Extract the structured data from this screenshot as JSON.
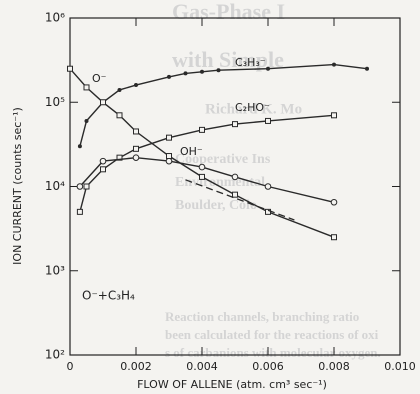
{
  "background_text": [
    "Gas-Phase I",
    "with Simple",
    "Richard K. Mo",
    "Cooperative Ins",
    "Environmental",
    "Boulder, Colo",
    "Reaction channels, branching ratio",
    "been calculated for the reactions of oxi",
    "s of carbanions with molecular oxygen."
  ],
  "chart_data": {
    "type": "line",
    "x_label": "FLOW OF ALLENE (atm. cm³ sec⁻¹)",
    "y_label": "ION CURRENT (counts sec⁻¹)",
    "annotation": "O⁻+C₃H₄",
    "log_y": true,
    "xlim": [
      0,
      0.01
    ],
    "ylim": [
      100,
      1000000
    ],
    "xticks": [
      0,
      0.002,
      0.004,
      0.006,
      0.008,
      {
        "value": 0.01,
        "label": "0.010"
      }
    ],
    "yticks": [
      {
        "value": 100,
        "label": "10²"
      },
      {
        "value": 1000,
        "label": "10³"
      },
      {
        "value": 10000,
        "label": "10⁴"
      },
      {
        "value": 100000,
        "label": "10⁵"
      },
      {
        "value": 1000000,
        "label": "10⁶"
      }
    ],
    "color": "#2a2a2a",
    "series": [
      {
        "name": "C₃H₃⁻",
        "marker": "dot",
        "x": [
          0.0003,
          0.0005,
          0.001,
          0.0015,
          0.002,
          0.003,
          0.0035,
          0.004,
          0.0045,
          0.006,
          0.008,
          0.009
        ],
        "values": [
          30000,
          60000,
          100000,
          140000,
          160000,
          200000,
          220000,
          230000,
          240000,
          250000,
          280000,
          250000
        ]
      },
      {
        "name": "C₂HO⁻",
        "marker": "square",
        "x": [
          0.0003,
          0.0005,
          0.001,
          0.0015,
          0.002,
          0.003,
          0.004,
          0.005,
          0.006,
          0.008
        ],
        "values": [
          5000,
          10000,
          16000,
          22000,
          28000,
          38000,
          47000,
          55000,
          60000,
          70000
        ]
      },
      {
        "name": "OH⁻",
        "marker": "circle",
        "x": [
          0.0003,
          0.001,
          0.002,
          0.003,
          0.004,
          0.005,
          0.006,
          0.008
        ],
        "values": [
          10000,
          20000,
          22000,
          20000,
          17000,
          13000,
          10000,
          6500
        ]
      },
      {
        "name": "O⁻",
        "marker": "square",
        "x": [
          0,
          0.0005,
          0.001,
          0.0015,
          0.002,
          0.003,
          0.004,
          0.005,
          0.006,
          0.008
        ],
        "values": [
          250000,
          150000,
          100000,
          70000,
          45000,
          23000,
          13000,
          8000,
          5000,
          2500
        ]
      }
    ],
    "dashed_line": {
      "x": [
        0.0035,
        0.0068
      ],
      "values": [
        12000,
        4000
      ]
    }
  }
}
